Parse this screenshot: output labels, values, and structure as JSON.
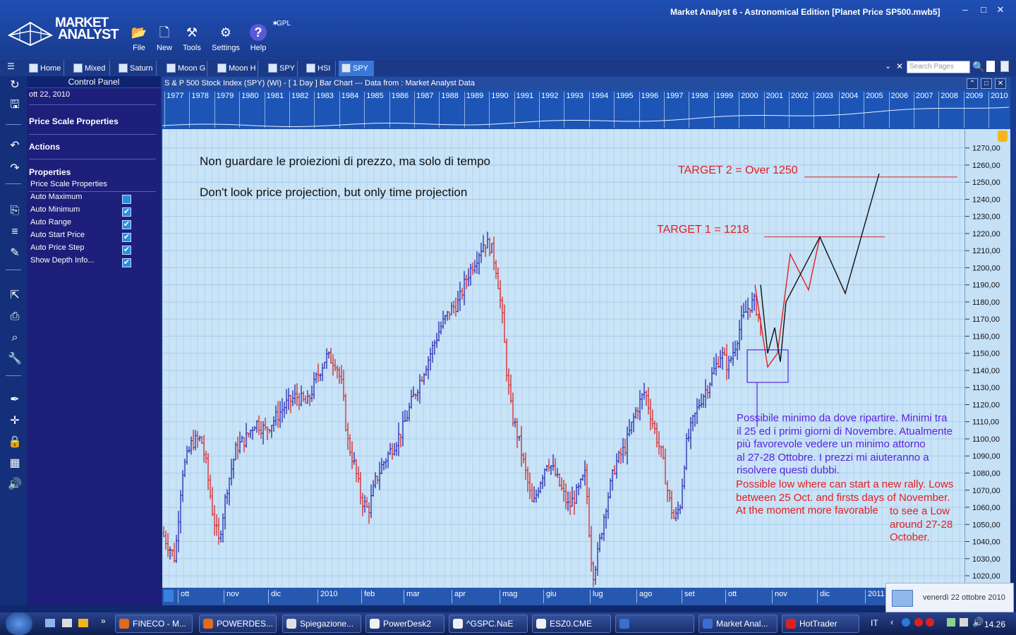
{
  "app": {
    "name_line1": "MARKET",
    "name_line2": "ANALYST",
    "window_title": "Market Analyst 6 - Astronomical Edition [Planet Price SP500.mwb5]",
    "gpl_label": "GPL"
  },
  "toolbar": [
    {
      "label": "File",
      "icon": "folder-icon"
    },
    {
      "label": "New",
      "icon": "new-document-icon"
    },
    {
      "label": "Tools",
      "icon": "tools-icon"
    },
    {
      "label": "Settings",
      "icon": "gear-icon"
    },
    {
      "label": "Help",
      "icon": "help-icon"
    }
  ],
  "tabs": [
    {
      "label": "Home"
    },
    {
      "label": "Mixed"
    },
    {
      "label": "Saturn"
    },
    {
      "label": "Moon G"
    },
    {
      "label": "Moon H"
    },
    {
      "label": "SPY"
    },
    {
      "label": "HSI"
    },
    {
      "label": "SPY",
      "active": true
    }
  ],
  "search": {
    "placeholder": "Search Pages"
  },
  "control_panel": {
    "title": "Control Panel",
    "date": "ott 22, 2010",
    "sections": [
      "Price Scale Properties",
      "Actions",
      "Properties"
    ],
    "subheading": "Price Scale Properties",
    "options": [
      {
        "label": "Auto Maximum",
        "checked": false
      },
      {
        "label": "Auto Minimum",
        "checked": true
      },
      {
        "label": "Auto Range",
        "checked": true
      },
      {
        "label": "Auto Start Price",
        "checked": true
      },
      {
        "label": "Auto Price Step",
        "checked": true
      },
      {
        "label": "Show Depth Info...",
        "checked": true
      }
    ]
  },
  "chart_window": {
    "header": "S & P 500 Stock Index (SPY) (WI) -  [ 1 Day ] Bar Chart --- Data from : Market Analyst Data"
  },
  "year_strip": [
    "1977",
    "1978",
    "1979",
    "1980",
    "1981",
    "1982",
    "1983",
    "1984",
    "1985",
    "1986",
    "1987",
    "1988",
    "1989",
    "1990",
    "1991",
    "1992",
    "1993",
    "1994",
    "1995",
    "1996",
    "1997",
    "1998",
    "1999",
    "2000",
    "2001",
    "2002",
    "2003",
    "2004",
    "2005",
    "2006",
    "2007",
    "2008",
    "2009",
    "2010"
  ],
  "annotations": {
    "note_it": "Non guardare le proiezioni di prezzo, ma solo di tempo",
    "note_en": "Don't look price projection, but only time projection",
    "target2": "TARGET 2 = Over 1250",
    "target1": "TARGET 1 = 1218",
    "blue_text": [
      "Possibile minimo da dove ripartire. Minimi tra",
      "il 25 ed i primi giorni di Novembre. Atualmente",
      "più favorevole vedere un minimo attorno",
      "al 27-28 Ottobre. I prezzi mi aiuteranno a",
      "risolvere questi dubbi."
    ],
    "red_text": [
      "Possible low where can start a new rally. Lows",
      "between 25 Oct. and firsts days of November.",
      "At the moment more favorable"
    ],
    "red_text_tail": [
      "to see a Low",
      "around 27-28",
      "October."
    ]
  },
  "chart_data": {
    "type": "bar",
    "title": "S & P 500 Stock Index (SPY)",
    "y_ticks": [
      1270,
      1260,
      1250,
      1240,
      1230,
      1220,
      1210,
      1200,
      1190,
      1180,
      1170,
      1160,
      1150,
      1140,
      1130,
      1120,
      1110,
      1100,
      1090,
      1080,
      1070,
      1060,
      1050,
      1040,
      1030,
      1020
    ],
    "ylim": [
      1013,
      1281
    ],
    "x_months": [
      "ott",
      "nov",
      "dic",
      "2010",
      "feb",
      "mar",
      "apr",
      "mag",
      "giu",
      "lug",
      "ago",
      "set",
      "ott",
      "nov",
      "dic",
      "2011"
    ],
    "colors": {
      "up": "#1a1aa8",
      "down": "#d81818",
      "grid": "#9fc6ea"
    },
    "price_path": [
      [
        0,
        1045
      ],
      [
        18,
        1030
      ],
      [
        28,
        1080
      ],
      [
        42,
        1098
      ],
      [
        55,
        1100
      ],
      [
        62,
        1085
      ],
      [
        72,
        1055
      ],
      [
        80,
        1040
      ],
      [
        92,
        1072
      ],
      [
        105,
        1095
      ],
      [
        118,
        1100
      ],
      [
        132,
        1110
      ],
      [
        146,
        1105
      ],
      [
        160,
        1112
      ],
      [
        175,
        1120
      ],
      [
        190,
        1125
      ],
      [
        205,
        1120
      ],
      [
        218,
        1135
      ],
      [
        232,
        1148
      ],
      [
        246,
        1145
      ],
      [
        255,
        1130
      ],
      [
        262,
        1100
      ],
      [
        272,
        1085
      ],
      [
        282,
        1065
      ],
      [
        292,
        1058
      ],
      [
        302,
        1075
      ],
      [
        312,
        1085
      ],
      [
        326,
        1095
      ],
      [
        340,
        1105
      ],
      [
        352,
        1120
      ],
      [
        366,
        1135
      ],
      [
        380,
        1150
      ],
      [
        394,
        1165
      ],
      [
        408,
        1175
      ],
      [
        420,
        1180
      ],
      [
        432,
        1195
      ],
      [
        444,
        1205
      ],
      [
        456,
        1215
      ],
      [
        466,
        1212
      ],
      [
        474,
        1198
      ],
      [
        482,
        1170
      ],
      [
        488,
        1140
      ],
      [
        495,
        1115
      ],
      [
        505,
        1100
      ],
      [
        515,
        1080
      ],
      [
        525,
        1060
      ],
      [
        535,
        1075
      ],
      [
        546,
        1088
      ],
      [
        556,
        1080
      ],
      [
        566,
        1070
      ],
      [
        576,
        1060
      ],
      [
        590,
        1070
      ],
      [
        600,
        1080
      ],
      [
        606,
        1040
      ],
      [
        610,
        1020
      ],
      [
        616,
        1030
      ],
      [
        628,
        1060
      ],
      [
        642,
        1085
      ],
      [
        656,
        1095
      ],
      [
        670,
        1115
      ],
      [
        684,
        1128
      ],
      [
        696,
        1108
      ],
      [
        708,
        1090
      ],
      [
        718,
        1065
      ],
      [
        726,
        1052
      ],
      [
        734,
        1062
      ],
      [
        742,
        1095
      ],
      [
        752,
        1110
      ],
      [
        762,
        1122
      ],
      [
        772,
        1130
      ],
      [
        782,
        1140
      ],
      [
        792,
        1150
      ],
      [
        802,
        1142
      ],
      [
        812,
        1155
      ],
      [
        822,
        1170
      ],
      [
        832,
        1178
      ],
      [
        840,
        1180
      ],
      [
        848,
        1165
      ]
    ],
    "projection_black": [
      [
        848,
        1190
      ],
      [
        858,
        1150
      ],
      [
        868,
        1165
      ],
      [
        876,
        1145
      ],
      [
        884,
        1180
      ],
      [
        932,
        1218
      ],
      [
        968,
        1185
      ],
      [
        1016,
        1255
      ]
    ],
    "projection_red": [
      [
        840,
        1190
      ],
      [
        858,
        1142
      ],
      [
        872,
        1150
      ],
      [
        890,
        1208
      ],
      [
        916,
        1187
      ],
      [
        932,
        1218
      ]
    ],
    "target_lines": [
      {
        "value": 1253,
        "x1": 910,
        "x2": 1127
      },
      {
        "value": 1218,
        "x1": 853,
        "x2": 1024
      }
    ]
  },
  "taskbar": {
    "items": [
      "FINECO - M...",
      "POWERDES...",
      "Spiegazione...",
      "PowerDesk2",
      "^GSPC.NaE",
      "ESZ0.CME",
      "",
      "Market Anal...",
      "HotTrader"
    ],
    "lang": "IT",
    "time": "14.26",
    "date_popup": "venerdì 22 ottobre 2010"
  }
}
